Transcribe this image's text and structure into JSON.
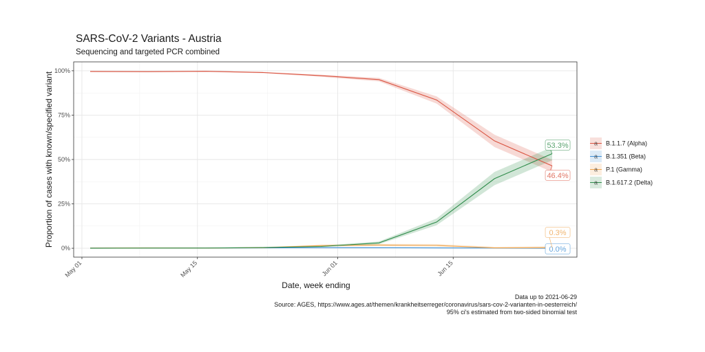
{
  "title": "SARS-CoV-2 Variants - Austria",
  "subtitle": "Sequencing and targeted PCR combined",
  "caption": {
    "line1": "Data up to 2021-06-29",
    "line2": "Source: AGES, https://www.ages.at/themen/krankheitserreger/coronavirus/sars-cov-2-varianten-in-oesterreich/",
    "line3": "95% ci's estimated from two-sided binomial test"
  },
  "chart_data": {
    "type": "line",
    "xlabel": "Date, week ending",
    "ylabel": "Proportion of cases with known/specified variant",
    "x_ticks": [
      {
        "date": "2021-05-01",
        "label": "May 01"
      },
      {
        "date": "2021-05-15",
        "label": "May 15"
      },
      {
        "date": "2021-06-01",
        "label": "Jun 01"
      },
      {
        "date": "2021-06-15",
        "label": "Jun 15"
      }
    ],
    "y_ticks": [
      {
        "value": 0,
        "label": "0%"
      },
      {
        "value": 25,
        "label": "25%"
      },
      {
        "value": 50,
        "label": "50%"
      },
      {
        "value": 75,
        "label": "75%"
      },
      {
        "value": 100,
        "label": "100%"
      }
    ],
    "xlim": [
      "2021-04-30",
      "2021-06-30"
    ],
    "ylim": [
      -5,
      105
    ],
    "grid": true,
    "legend_position": "right",
    "x": [
      "2021-05-02",
      "2021-05-09",
      "2021-05-16",
      "2021-05-23",
      "2021-05-30",
      "2021-06-06",
      "2021-06-13",
      "2021-06-20",
      "2021-06-27"
    ],
    "series": [
      {
        "name": "B.1.1.7 (Alpha)",
        "color": "#d9523f",
        "values": [
          99.6,
          99.5,
          99.7,
          99.0,
          97.2,
          95.0,
          83.5,
          60.5,
          46.4
        ],
        "lower": [
          99.3,
          99.2,
          99.4,
          98.6,
          96.6,
          94.0,
          81.5,
          57.0,
          43.0
        ],
        "upper": [
          99.8,
          99.7,
          99.9,
          99.3,
          97.7,
          96.0,
          85.5,
          64.0,
          49.8
        ],
        "end_label": "46.4%"
      },
      {
        "name": "B.1.351 (Beta)",
        "color": "#3e8fd4",
        "values": [
          0.1,
          0.1,
          0.1,
          0.2,
          0.3,
          0.3,
          0.2,
          0.1,
          0.0
        ],
        "lower": [
          0.0,
          0.0,
          0.0,
          0.0,
          0.1,
          0.1,
          0.0,
          0.0,
          0.0
        ],
        "upper": [
          0.3,
          0.3,
          0.3,
          0.5,
          0.6,
          0.6,
          0.5,
          0.4,
          0.3
        ],
        "end_label": "0.0%"
      },
      {
        "name": "P.1 (Gamma)",
        "color": "#eea24b",
        "values": [
          0.1,
          0.2,
          0.1,
          0.3,
          1.5,
          1.8,
          1.6,
          0.2,
          0.3
        ],
        "lower": [
          0.0,
          0.0,
          0.0,
          0.1,
          1.0,
          1.2,
          1.0,
          0.0,
          0.1
        ],
        "upper": [
          0.3,
          0.4,
          0.3,
          0.6,
          2.0,
          2.5,
          2.4,
          0.8,
          1.2
        ],
        "end_label": "0.3%"
      },
      {
        "name": "B.1.617.2 (Delta)",
        "color": "#2e8b4a",
        "values": [
          0.0,
          0.1,
          0.1,
          0.4,
          1.0,
          3.0,
          14.8,
          39.2,
          53.3
        ],
        "lower": [
          0.0,
          0.0,
          0.0,
          0.2,
          0.6,
          2.3,
          13.0,
          35.5,
          49.5
        ],
        "upper": [
          0.2,
          0.3,
          0.3,
          0.7,
          1.5,
          3.8,
          16.8,
          43.0,
          57.0
        ],
        "end_label": "53.3%"
      }
    ]
  }
}
